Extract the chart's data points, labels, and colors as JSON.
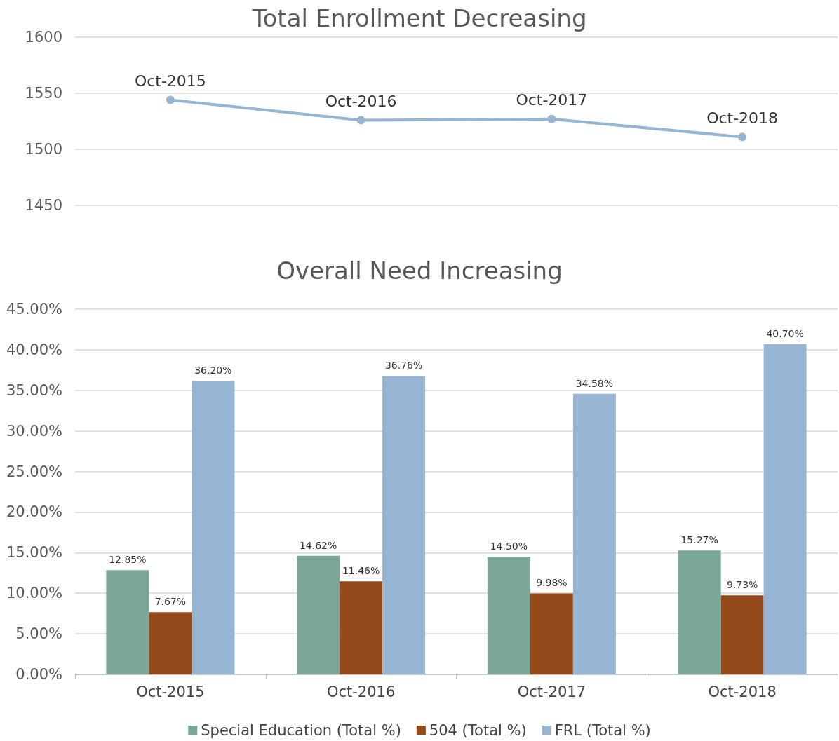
{
  "chart_data": [
    {
      "type": "line",
      "title": "Total Enrollment Decreasing",
      "categories": [
        "Oct-2015",
        "Oct-2016",
        "Oct-2017",
        "Oct-2018"
      ],
      "series": [
        {
          "color": "#95b5d3",
          "values": [
            1544,
            1526,
            1527,
            1511
          ]
        }
      ],
      "ylim": [
        1450,
        1600
      ],
      "yticks": [
        1450,
        1500,
        1550,
        1600
      ],
      "grid": "y",
      "marker": "circle",
      "line_style": "solid",
      "tick_labels": "y",
      "legend": false
    },
    {
      "type": "bar",
      "title": "Overall Need Increasing",
      "categories": [
        "Oct-2015",
        "Oct-2016",
        "Oct-2017",
        "Oct-2018"
      ],
      "series": [
        {
          "name": "Special Education (Total %)",
          "color": "#7aa79a",
          "values": [
            12.85,
            14.62,
            14.5,
            15.27
          ],
          "value_labels": [
            "12.85%",
            "14.62%",
            "14.50%",
            "15.27%"
          ]
        },
        {
          "name": "504 (Total %)",
          "color": "#944a1a",
          "values": [
            7.67,
            11.46,
            9.98,
            9.73
          ],
          "value_labels": [
            "7.67%",
            "11.46%",
            "9.98%",
            "9.73%"
          ]
        },
        {
          "name": "FRL (Total %)",
          "color": "#95b5d3",
          "values": [
            36.2,
            36.76,
            34.58,
            40.7
          ],
          "value_labels": [
            "36.20%",
            "36.76%",
            "34.58%",
            "40.70%"
          ]
        }
      ],
      "ylim": [
        0,
        45
      ],
      "yticks": [
        {
          "value": 0,
          "label": "0.00%"
        },
        {
          "value": 5,
          "label": "5.00%"
        },
        {
          "value": 10,
          "label": "10.00%"
        },
        {
          "value": 15,
          "label": "15.00%"
        },
        {
          "value": 20,
          "label": "20.00%"
        },
        {
          "value": 25,
          "label": "25.00%"
        },
        {
          "value": 30,
          "label": "30.00%"
        },
        {
          "value": 35,
          "label": "35.00%"
        },
        {
          "value": 40,
          "label": "40.00%"
        },
        {
          "value": 45,
          "label": "45.00%"
        }
      ],
      "grid": "y",
      "legend": "bottom"
    }
  ]
}
